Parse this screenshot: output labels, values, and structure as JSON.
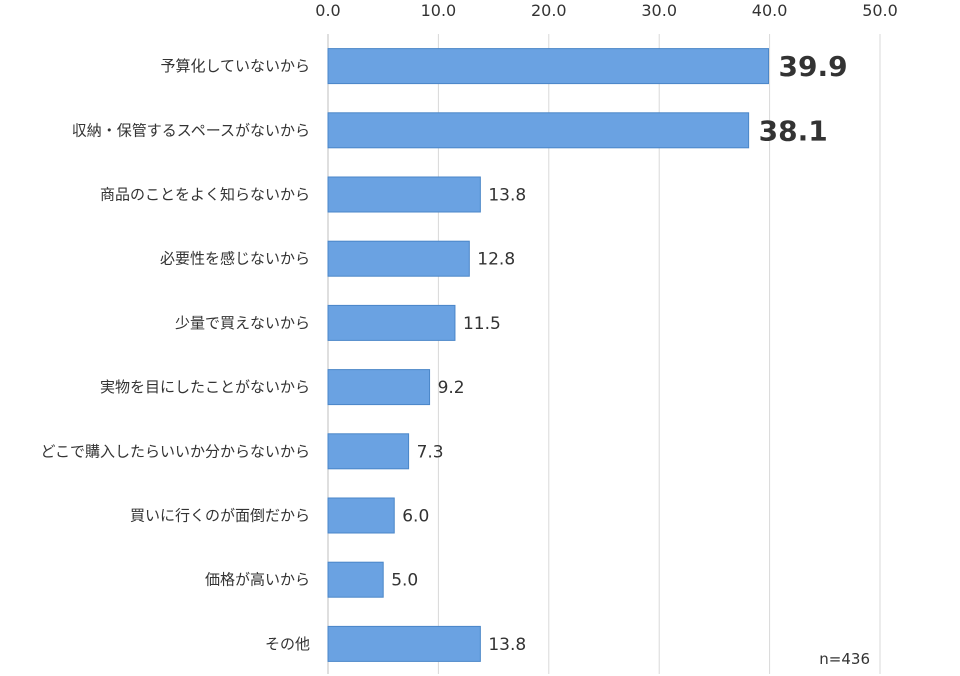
{
  "chart_data": {
    "type": "bar",
    "orientation": "horizontal",
    "categories": [
      "予算化していないから",
      "収納・保管するスペースがないから",
      "商品のことをよく知らないから",
      "必要性を感じないから",
      "少量で買えないから",
      "実物を目にしたことがないから",
      "どこで購入したらいいか分からないから",
      "買いに行くのが面倒だから",
      "価格が高いから",
      "その他"
    ],
    "values": [
      39.9,
      38.1,
      13.8,
      12.8,
      11.5,
      9.2,
      7.3,
      6.0,
      5.0,
      13.8
    ],
    "value_labels": [
      "39.9",
      "38.1",
      "13.8",
      "12.8",
      "11.5",
      "9.2",
      "7.3",
      "6.0",
      "5.0",
      "13.8"
    ],
    "highlight_top": 2,
    "xlim": [
      0,
      50
    ],
    "ticks": [
      0,
      10,
      20,
      30,
      40,
      50
    ],
    "tick_labels": [
      "0.0",
      "10.0",
      "20.0",
      "30.0",
      "40.0",
      "50.0"
    ],
    "axis_position": "top",
    "grid": true,
    "bar_color": "#6aa2e2",
    "bar_edge_color": "#4a86c8",
    "note": "n=436"
  }
}
